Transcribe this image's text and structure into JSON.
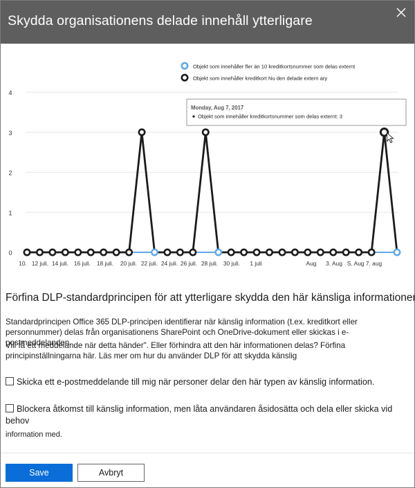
{
  "dialog": {
    "title": "Skydda organisationens delade innehåll ytterligare",
    "close_icon": "close-icon"
  },
  "chart_data": {
    "type": "line",
    "ylim": [
      0,
      4
    ],
    "yticks": [
      "0",
      "1",
      "2",
      "3",
      "4"
    ],
    "legend_placement": "top-right",
    "legend": [
      {
        "label": "Objekt som innehåller fler än 10 kreditkortsnummer som delas externt",
        "color": "#5fa8e8"
      },
      {
        "label": "Objekt som innehåller kreditkort Nu den delade extern ary",
        "color": "#1b1b1b"
      }
    ],
    "x_labels": [
      "10.",
      "12 juli.",
      "14 juli.",
      "16 juli.",
      "18 juli.",
      "20 juli.",
      "22 juli.",
      "24 juli.",
      "26 juli.",
      "28 juli.",
      "30 juli.",
      "1 juli",
      "Aug",
      "3. Aug",
      "S. Aug 7. aug"
    ],
    "series": [
      {
        "name": "Objekt som innehåller fler än 10 kreditkortsnummer som delas externt",
        "color": "#5fa8e8",
        "values": [
          0,
          0,
          0,
          0,
          0,
          0,
          0,
          0,
          0,
          0,
          0,
          0,
          0,
          0,
          0,
          0,
          0,
          0,
          0,
          0,
          0,
          0,
          0,
          0,
          0,
          0,
          0,
          0,
          0,
          0
        ]
      },
      {
        "name": "Objekt som innehåller kreditkort Nu den delade extern ary",
        "color": "#1b1b1b",
        "values": [
          0,
          0,
          0,
          0,
          0,
          0,
          0,
          0,
          0,
          3,
          0,
          0,
          0,
          0,
          3,
          0,
          0,
          0,
          0,
          0,
          0,
          0,
          0,
          0,
          0,
          0,
          0,
          0,
          3,
          0
        ]
      }
    ],
    "tooltip": {
      "date": "Monday, Aug 7, 2017",
      "text": "Objekt som innehåller kreditkortsnummer som delas externt: 3"
    }
  },
  "section": {
    "heading": "Förfina DLP-standardprincipen för att ytterligare skydda den här känsliga informationen",
    "description_1": "Standardprincipen Office 365 DLP-principen identifierar när känslig information (t.ex. kreditkort eller personnummer) delas från organisationens SharePoint och OneDrive-dokument eller skickas i e-postmeddelanden.",
    "description_2": "Vill få ett meddelande när detta händer\". Eller förhindra att den här informationen delas? Förfina principinställningarna här. Läs mer om hur du använder DLP för att skydda känslig"
  },
  "options": {
    "email_label": "Skicka ett e-postmeddelande till mig när personer delar den här typen av känslig information.",
    "email_checked": false,
    "block_label": "Blockera åtkomst till känslig information, men låta användaren åsidosätta och dela eller skicka vid behov",
    "block_sublabel": "information med.",
    "block_checked": false
  },
  "footer": {
    "save_label": "Save",
    "cancel_label": "Avbryt"
  }
}
